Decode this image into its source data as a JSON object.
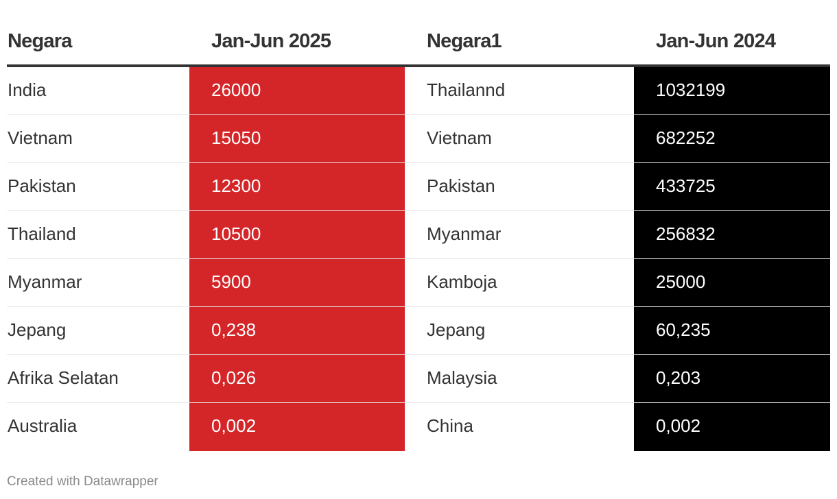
{
  "colors": {
    "col2_fill": "#d42528",
    "col4_fill": "#000000",
    "header_rule": "#333333",
    "row_separator": "#e6e6e6",
    "text": "#333333",
    "footer_text": "#8a8a8a"
  },
  "chart_data": {
    "type": "table",
    "columns": [
      "Negara",
      "Jan-Jun 2025",
      "Negara1",
      "Jan-Jun 2024"
    ],
    "rows": [
      [
        "India",
        "26000",
        "Thailannd",
        "1032199"
      ],
      [
        "Vietnam",
        "15050",
        "Vietnam",
        "682252"
      ],
      [
        "Pakistan",
        "12300",
        "Pakistan",
        "433725"
      ],
      [
        "Thailand",
        "10500",
        "Myanmar",
        "256832"
      ],
      [
        "Myanmar",
        "5900",
        "Kamboja",
        "25000"
      ],
      [
        "Jepang",
        "0,238",
        "Jepang",
        "60,235"
      ],
      [
        "Afrika Selatan",
        "0,026",
        "Malaysia",
        "0,203"
      ],
      [
        "Australia",
        "0,002",
        "China",
        "0,002"
      ]
    ]
  },
  "footer": {
    "credit": "Created with Datawrapper"
  }
}
